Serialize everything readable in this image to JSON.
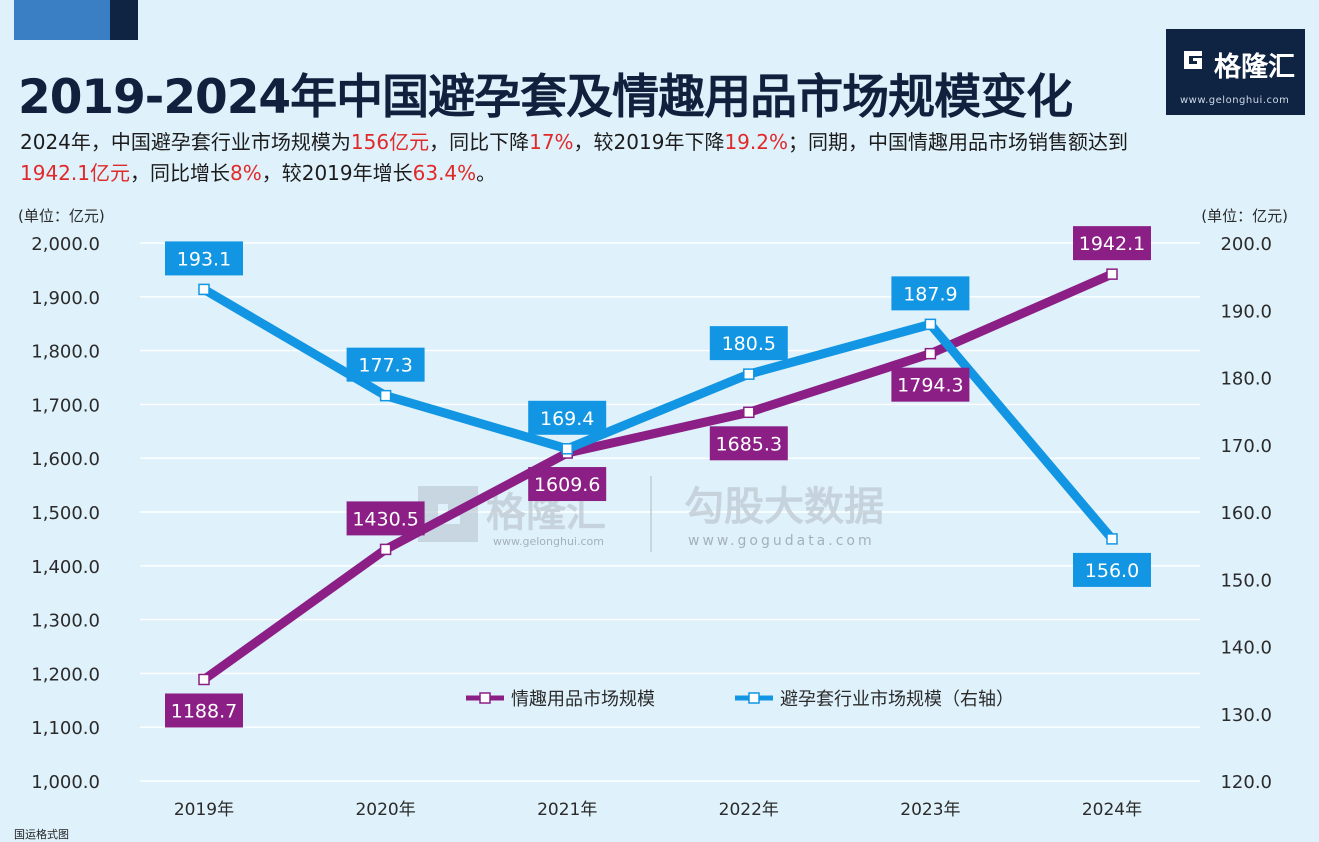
{
  "header": {
    "title": "2019-2024年中国避孕套及情趣用品市场规模变化",
    "summary_parts": [
      {
        "text": "2024年，中国避孕套行业市场规模为",
        "hl": false
      },
      {
        "text": "156亿元",
        "hl": true
      },
      {
        "text": "，同比下降",
        "hl": false
      },
      {
        "text": "17%",
        "hl": true
      },
      {
        "text": "，较2019年下降",
        "hl": false
      },
      {
        "text": "19.2%",
        "hl": true
      },
      {
        "text": "；同期，中国情趣用品市场销售额达到",
        "hl": false
      },
      {
        "text": "1942.1亿元",
        "hl": true
      },
      {
        "text": "，同比增长",
        "hl": false
      },
      {
        "text": "8%",
        "hl": true
      },
      {
        "text": "，较2019年增长",
        "hl": false
      },
      {
        "text": "63.4%",
        "hl": true
      },
      {
        "text": "。",
        "hl": false
      }
    ]
  },
  "logo": {
    "name": "格隆汇",
    "url": "www.gelonghui.com",
    "icon": "gelonghui-logo-icon"
  },
  "watermark": {
    "left_name": "格隆汇",
    "left_url": "www.gelonghui.com",
    "right_name": "勾股大数据",
    "right_url": "www.gogudata.com"
  },
  "footer_text": "国运格式图",
  "colors": {
    "background": "#dff1fb",
    "title": "#10203d",
    "highlight": "#e02a2a",
    "purple": "#8b1f86",
    "blue": "#1296e4",
    "grid": "#ffffff"
  },
  "chart_data": {
    "type": "line",
    "categories": [
      "2019年",
      "2020年",
      "2021年",
      "2022年",
      "2023年",
      "2024年"
    ],
    "left_unit": "(单位：亿元)",
    "right_unit": "(单位：亿元)",
    "ylim_left": [
      1000,
      2000
    ],
    "ylim_right": [
      120,
      200
    ],
    "left_ticks": [
      "1,000.0",
      "1,100.0",
      "1,200.0",
      "1,300.0",
      "1,400.0",
      "1,500.0",
      "1,600.0",
      "1,700.0",
      "1,800.0",
      "1,900.0",
      "2,000.0"
    ],
    "right_ticks": [
      "120.0",
      "130.0",
      "140.0",
      "150.0",
      "160.0",
      "170.0",
      "180.0",
      "190.0",
      "200.0"
    ],
    "grid": true,
    "legend_position": "bottom-center",
    "series": [
      {
        "name": "情趣用品市场规模",
        "axis": "left",
        "color": "#8b1f86",
        "values": [
          1188.7,
          1430.5,
          1609.6,
          1685.3,
          1794.3,
          1942.1
        ],
        "labels": [
          "1188.7",
          "1430.5",
          "1609.6",
          "1685.3",
          "1794.3",
          "1942.1"
        ],
        "label_positions": [
          "below",
          "above",
          "below",
          "below",
          "below",
          "above"
        ]
      },
      {
        "name": "避孕套行业市场规模（右轴）",
        "axis": "right",
        "color": "#1296e4",
        "values": [
          193.1,
          177.3,
          169.4,
          180.5,
          187.9,
          156.0
        ],
        "labels": [
          "193.1",
          "177.3",
          "169.4",
          "180.5",
          "187.9",
          "156.0"
        ],
        "label_positions": [
          "above",
          "above",
          "above",
          "above",
          "above",
          "below"
        ]
      }
    ]
  }
}
